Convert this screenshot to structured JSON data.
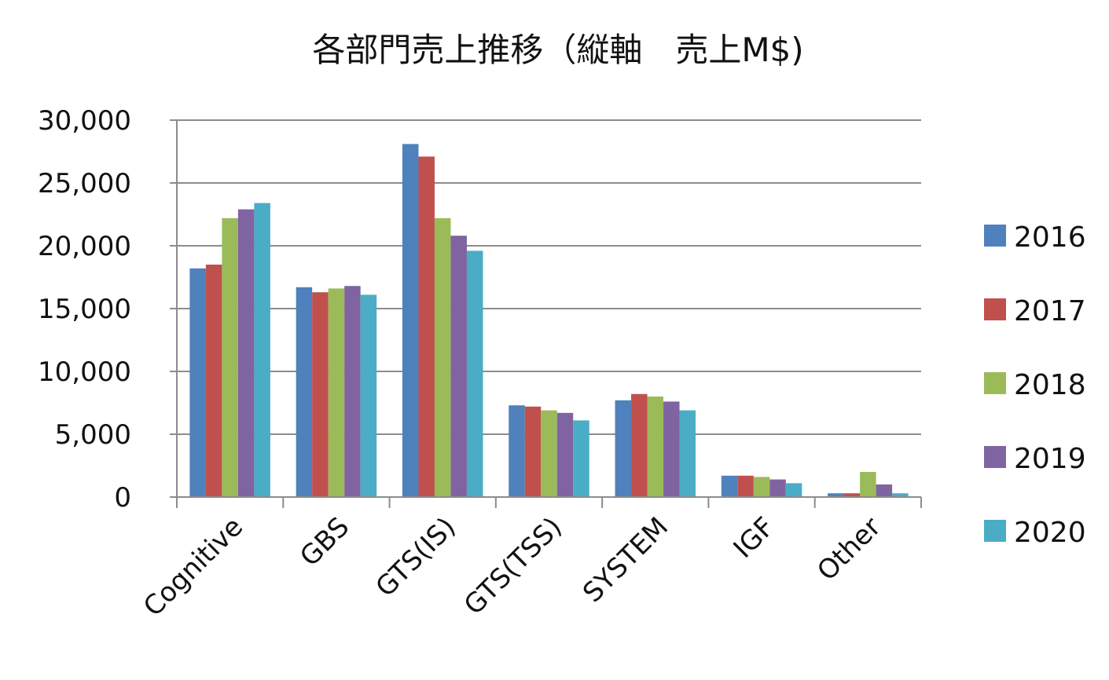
{
  "chart_data": {
    "type": "bar",
    "title": "各部門売上推移（縦軸　売上M$)",
    "xlabel": "",
    "ylabel": "",
    "categories": [
      "Cognitive",
      "GBS",
      "GTS(IS)",
      "GTS(TSS)",
      "SYSTEM",
      "IGF",
      "Other"
    ],
    "series": [
      {
        "name": "2016",
        "color": "#4F81BD",
        "values": [
          18200,
          16700,
          28100,
          7300,
          7700,
          1700,
          300
        ]
      },
      {
        "name": "2017",
        "color": "#C0504D",
        "values": [
          18500,
          16300,
          27100,
          7200,
          8200,
          1700,
          300
        ]
      },
      {
        "name": "2018",
        "color": "#9BBB59",
        "values": [
          22200,
          16600,
          22200,
          6900,
          8000,
          1600,
          2000
        ]
      },
      {
        "name": "2019",
        "color": "#8064A2",
        "values": [
          22900,
          16800,
          20800,
          6700,
          7600,
          1400,
          1000
        ]
      },
      {
        "name": "2020",
        "color": "#4BACC6",
        "values": [
          23400,
          16100,
          19600,
          6100,
          6900,
          1100,
          300
        ]
      }
    ],
    "ylim": [
      0,
      30000
    ],
    "yticks": [
      0,
      5000,
      10000,
      15000,
      20000,
      25000,
      30000
    ],
    "ytick_labels": [
      "0",
      "5,000",
      "10,000",
      "15,000",
      "20,000",
      "25,000",
      "30,000"
    ],
    "grid": true,
    "legend_position": "right"
  }
}
